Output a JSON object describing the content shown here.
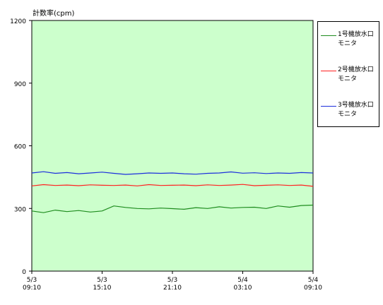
{
  "chart_data": {
    "type": "line",
    "ylabel": "計数率(cpm)",
    "ylim": [
      0,
      1200
    ],
    "yticks": [
      0,
      300,
      600,
      900,
      1200
    ],
    "xlim": [
      "2023-05-03T09:10",
      "2023-05-04T09:10"
    ],
    "xticks": [
      {
        "value": "2023-05-03T09:10",
        "line1": "5/3",
        "line2": "09:10"
      },
      {
        "value": "2023-05-03T15:10",
        "line1": "5/3",
        "line2": "15:10"
      },
      {
        "value": "2023-05-03T21:10",
        "line1": "5/3",
        "line2": "21:10"
      },
      {
        "value": "2023-05-04T03:10",
        "line1": "5/4",
        "line2": "03:10"
      },
      {
        "value": "2023-05-04T09:10",
        "line1": "5/4",
        "line2": "09:10"
      }
    ],
    "plot_background": "#ccffcc",
    "grid": false,
    "legend_position": "right",
    "series": [
      {
        "name_line1": "1号機放水口",
        "name_line2": "モニタ",
        "color": "#1e8c1e",
        "x": [
          "2023-05-03T09:10",
          "2023-05-03T10:10",
          "2023-05-03T11:10",
          "2023-05-03T12:10",
          "2023-05-03T13:10",
          "2023-05-03T14:10",
          "2023-05-03T15:10",
          "2023-05-03T16:10",
          "2023-05-03T17:10",
          "2023-05-03T18:10",
          "2023-05-03T19:10",
          "2023-05-03T20:10",
          "2023-05-03T21:10",
          "2023-05-03T22:10",
          "2023-05-03T23:10",
          "2023-05-04T00:10",
          "2023-05-04T01:10",
          "2023-05-04T02:10",
          "2023-05-04T03:10",
          "2023-05-04T04:10",
          "2023-05-04T05:10",
          "2023-05-04T06:10",
          "2023-05-04T07:10",
          "2023-05-04T08:10",
          "2023-05-04T09:10"
        ],
        "values": [
          288,
          280,
          292,
          285,
          290,
          283,
          288,
          312,
          305,
          300,
          298,
          302,
          299,
          296,
          304,
          300,
          308,
          302,
          305,
          306,
          300,
          312,
          306,
          314,
          316
        ]
      },
      {
        "name_line1": "2号機放水口",
        "name_line2": "モニタ",
        "color": "#ff2020",
        "x": [
          "2023-05-03T09:10",
          "2023-05-03T10:10",
          "2023-05-03T11:10",
          "2023-05-03T12:10",
          "2023-05-03T13:10",
          "2023-05-03T14:10",
          "2023-05-03T15:10",
          "2023-05-03T16:10",
          "2023-05-03T17:10",
          "2023-05-03T18:10",
          "2023-05-03T19:10",
          "2023-05-03T20:10",
          "2023-05-03T21:10",
          "2023-05-03T22:10",
          "2023-05-03T23:10",
          "2023-05-04T00:10",
          "2023-05-04T01:10",
          "2023-05-04T02:10",
          "2023-05-04T03:10",
          "2023-05-04T04:10",
          "2023-05-04T05:10",
          "2023-05-04T06:10",
          "2023-05-04T07:10",
          "2023-05-04T08:10",
          "2023-05-04T09:10"
        ],
        "values": [
          408,
          414,
          410,
          412,
          409,
          413,
          411,
          410,
          412,
          408,
          414,
          410,
          411,
          412,
          409,
          413,
          410,
          412,
          415,
          409,
          411,
          413,
          410,
          412,
          406
        ]
      },
      {
        "name_line1": "3号機放水口",
        "name_line2": "モニタ",
        "color": "#1c2edc",
        "x": [
          "2023-05-03T09:10",
          "2023-05-03T10:10",
          "2023-05-03T11:10",
          "2023-05-03T12:10",
          "2023-05-03T13:10",
          "2023-05-03T14:10",
          "2023-05-03T15:10",
          "2023-05-03T16:10",
          "2023-05-03T17:10",
          "2023-05-03T18:10",
          "2023-05-03T19:10",
          "2023-05-03T20:10",
          "2023-05-03T21:10",
          "2023-05-03T22:10",
          "2023-05-03T23:10",
          "2023-05-04T00:10",
          "2023-05-04T01:10",
          "2023-05-04T02:10",
          "2023-05-04T03:10",
          "2023-05-04T04:10",
          "2023-05-04T05:10",
          "2023-05-04T06:10",
          "2023-05-04T07:10",
          "2023-05-04T08:10",
          "2023-05-04T09:10"
        ],
        "values": [
          470,
          476,
          468,
          472,
          466,
          470,
          474,
          468,
          463,
          466,
          470,
          468,
          470,
          466,
          464,
          468,
          470,
          475,
          469,
          471,
          467,
          470,
          468,
          472,
          470
        ]
      }
    ]
  }
}
